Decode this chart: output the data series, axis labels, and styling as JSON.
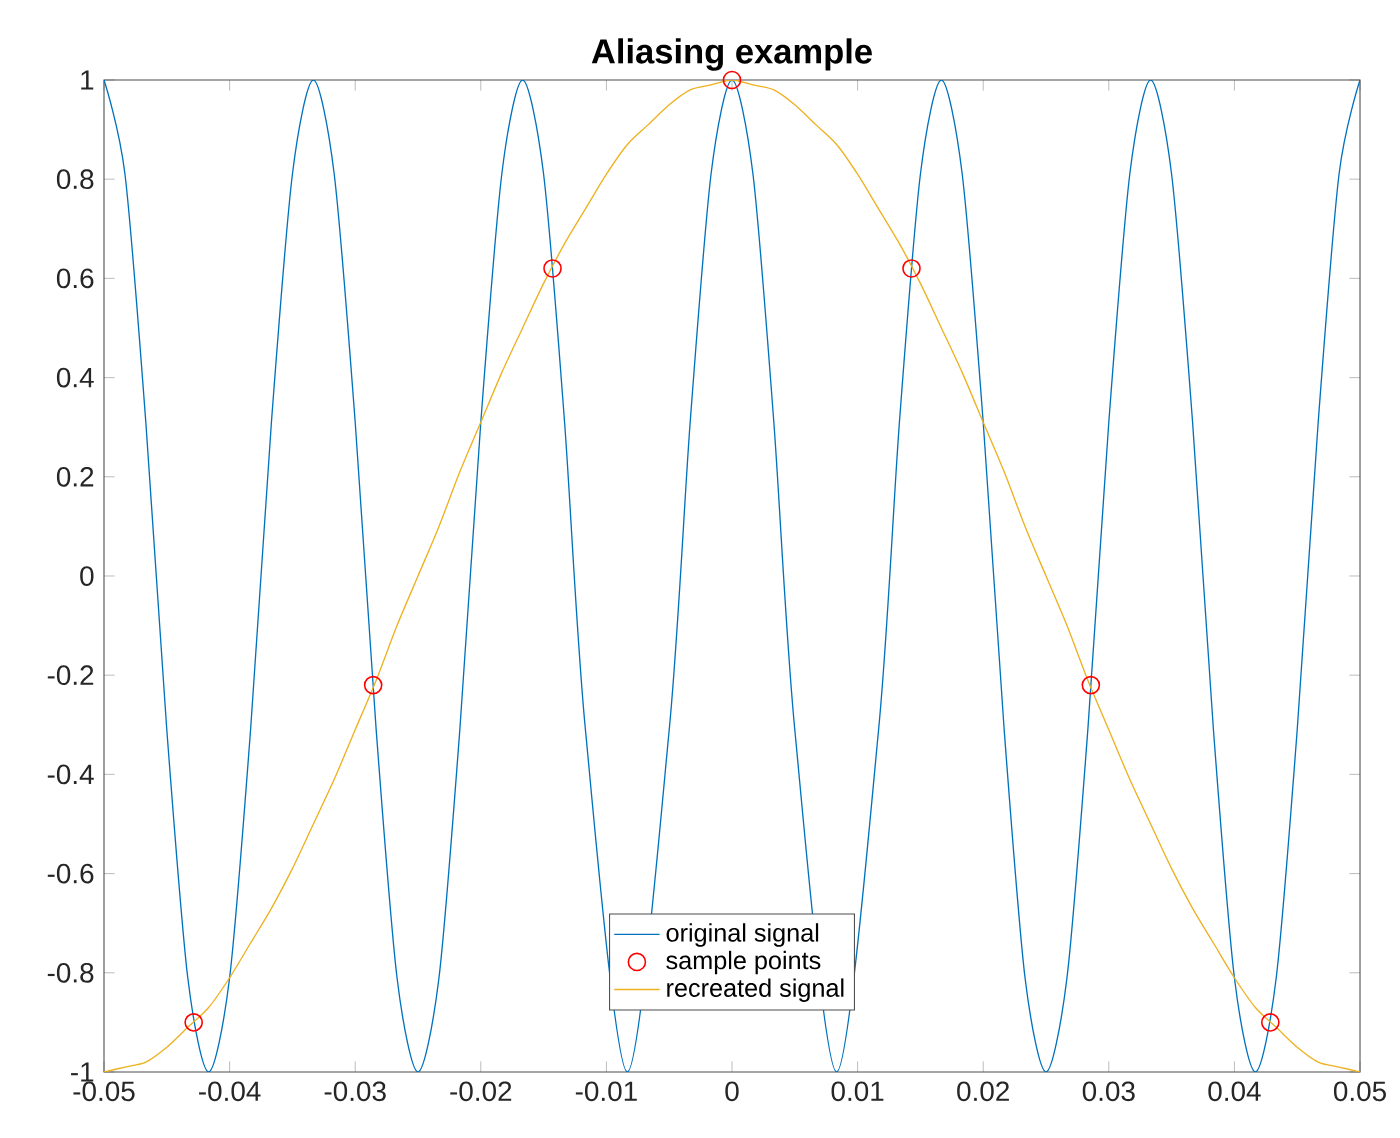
{
  "chart_data": {
    "type": "line",
    "title": "Aliasing example",
    "x": [
      -0.05,
      -0.04833,
      -0.04667,
      -0.045,
      -0.04333,
      -0.04167,
      -0.04,
      -0.03833,
      -0.03667,
      -0.035,
      -0.03333,
      -0.03167,
      -0.03,
      -0.02833,
      -0.02667,
      -0.025,
      -0.02333,
      -0.02167,
      -0.02,
      -0.01833,
      -0.01667,
      -0.015,
      -0.01333,
      -0.01167,
      -0.01,
      -0.00833,
      -0.00667,
      -0.005,
      -0.00333,
      -0.00167,
      0,
      0.00167,
      0.00333,
      0.005,
      0.00667,
      0.00833,
      0.01,
      0.01167,
      0.01333,
      0.015,
      0.01667,
      0.01833,
      0.02,
      0.02167,
      0.02333,
      0.025,
      0.02667,
      0.02833,
      0.03,
      0.03167,
      0.03333,
      0.035,
      0.03667,
      0.03833,
      0.04,
      0.04167,
      0.04333,
      0.045,
      0.04667,
      0.04833,
      0.05
    ],
    "series": [
      {
        "name": "original signal",
        "type": "line",
        "color": "#0072bd",
        "marker": "none",
        "values": [
          1,
          0.81,
          0.31,
          -0.31,
          -0.81,
          -1,
          -0.81,
          -0.31,
          0.31,
          0.81,
          1,
          0.81,
          0.31,
          -0.31,
          -0.81,
          -1,
          -0.81,
          -0.31,
          0.31,
          0.81,
          1,
          0.81,
          0.31,
          -0.31,
          null,
          -1,
          null,
          -0.31,
          0.31,
          0.81,
          1,
          0.81,
          0.31,
          -0.31,
          null,
          -1,
          null,
          -0.31,
          0.31,
          0.81,
          1,
          0.81,
          0.31,
          -0.31,
          -0.81,
          -1,
          -0.81,
          -0.31,
          0.31,
          0.81,
          1,
          0.81,
          0.31,
          -0.31,
          -0.81,
          -1,
          -0.81,
          -0.31,
          0.31,
          0.81,
          1
        ]
      },
      {
        "name": "sample points",
        "type": "scatter",
        "color": "#ff0000",
        "marker": "circle",
        "x": [
          -0.04286,
          -0.02857,
          -0.01429,
          0,
          0.01429,
          0.02857,
          0.04286
        ],
        "values": [
          -0.9,
          -0.22,
          0.62,
          1,
          0.62,
          -0.22,
          -0.9
        ]
      },
      {
        "name": "recreated signal",
        "type": "line",
        "color": "#edb120",
        "marker": "none",
        "values": [
          -1,
          -0.99,
          -0.98,
          -0.95,
          -0.91,
          -0.87,
          -0.81,
          -0.74,
          -0.67,
          -0.59,
          -0.5,
          -0.41,
          -0.31,
          -0.21,
          -0.1,
          0,
          0.1,
          0.21,
          0.31,
          0.41,
          0.5,
          0.59,
          0.67,
          0.74,
          0.81,
          0.87,
          0.91,
          0.95,
          0.98,
          0.99,
          1,
          0.99,
          0.98,
          0.95,
          0.91,
          0.87,
          0.81,
          0.74,
          0.67,
          0.59,
          0.5,
          0.41,
          0.31,
          0.21,
          0.1,
          0,
          -0.1,
          -0.21,
          -0.31,
          -0.41,
          -0.5,
          -0.59,
          -0.67,
          -0.74,
          -0.81,
          -0.87,
          -0.91,
          -0.95,
          -0.98,
          -0.99,
          -1
        ]
      }
    ],
    "xlim": [
      -0.05,
      0.05
    ],
    "ylim": [
      -1,
      1
    ],
    "xticks": [
      -0.05,
      -0.04,
      -0.03,
      -0.02,
      -0.01,
      0,
      0.01,
      0.02,
      0.03,
      0.04,
      0.05
    ],
    "yticks": [
      -1,
      -0.8,
      -0.6,
      -0.4,
      -0.2,
      0,
      0.2,
      0.4,
      0.6,
      0.8,
      1
    ],
    "grid": false,
    "legend": "bottom"
  }
}
